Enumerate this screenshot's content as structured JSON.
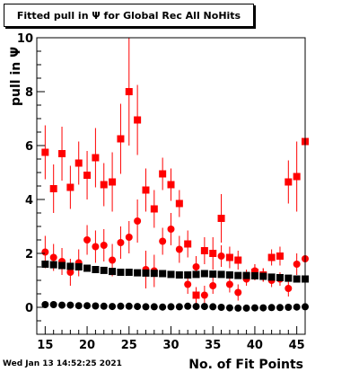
{
  "chart_data": {
    "type": "scatter",
    "title": "Fitted pull in  Ψ  for Global Rec All NoHits",
    "ylabel": "pull in  Ψ",
    "xlabel": "No. of Fit Points",
    "footer": "Wed Jan 13 14:52:25 2021",
    "xlim": [
      14,
      46
    ],
    "ylim": [
      -1,
      10
    ],
    "x_ticks": [
      "15",
      "20",
      "25",
      "30",
      "35",
      "40",
      "45"
    ],
    "y_ticks": [
      "0",
      "2",
      "4",
      "6",
      "8",
      "10"
    ],
    "colors": {
      "red": "#ff0000",
      "black": "#000000"
    },
    "series": [
      {
        "marker": "square",
        "color": "#ff0000",
        "points": [
          {
            "x": 15,
            "y": 5.75,
            "err": 1.0
          },
          {
            "x": 16,
            "y": 4.4,
            "err": 0.9
          },
          {
            "x": 17,
            "y": 5.7,
            "err": 1.0
          },
          {
            "x": 18,
            "y": 4.45,
            "err": 0.8
          },
          {
            "x": 19,
            "y": 5.35,
            "err": 0.8
          },
          {
            "x": 20,
            "y": 4.9,
            "err": 0.9
          },
          {
            "x": 21,
            "y": 5.55,
            "err": 1.1
          },
          {
            "x": 22,
            "y": 4.55,
            "err": 0.8
          },
          {
            "x": 23,
            "y": 4.65,
            "err": 1.1
          },
          {
            "x": 24,
            "y": 6.25,
            "err": 1.3
          },
          {
            "x": 25,
            "y": 8.0,
            "err": 2.0
          },
          {
            "x": 26,
            "y": 6.95,
            "err": 1.3
          },
          {
            "x": 27,
            "y": 4.35,
            "err": 0.8
          },
          {
            "x": 28,
            "y": 3.65,
            "err": 0.7
          },
          {
            "x": 29,
            "y": 4.95,
            "err": 0.6
          },
          {
            "x": 30,
            "y": 4.55,
            "err": 0.6
          },
          {
            "x": 31,
            "y": 3.85,
            "err": 0.5
          },
          {
            "x": 32,
            "y": 2.35,
            "err": 0.5
          },
          {
            "x": 33,
            "y": 0.45,
            "err": 0.3
          },
          {
            "x": 34,
            "y": 2.1,
            "err": 0.5
          },
          {
            "x": 35,
            "y": 2.0,
            "err": 0.6
          },
          {
            "x": 36,
            "y": 3.3,
            "err": 0.9
          },
          {
            "x": 37,
            "y": 1.85,
            "err": 0.4
          },
          {
            "x": 38,
            "y": 1.75,
            "err": 0.35
          },
          {
            "x": 39,
            "y": 1.15,
            "err": 0.25
          },
          {
            "x": 40,
            "y": 1.3,
            "err": 0.3
          },
          {
            "x": 41,
            "y": 1.2,
            "err": 0.25
          },
          {
            "x": 42,
            "y": 1.85,
            "err": 0.3
          },
          {
            "x": 43,
            "y": 1.9,
            "err": 0.35
          },
          {
            "x": 44,
            "y": 4.65,
            "err": 0.8
          },
          {
            "x": 45,
            "y": 4.85,
            "err": 1.3
          },
          {
            "x": 46,
            "y": 6.15,
            "err": 3.8
          }
        ]
      },
      {
        "marker": "circle",
        "color": "#ff0000",
        "points": [
          {
            "x": 15,
            "y": 2.05,
            "err": 0.6
          },
          {
            "x": 16,
            "y": 1.85,
            "err": 0.5
          },
          {
            "x": 17,
            "y": 1.7,
            "err": 0.5
          },
          {
            "x": 18,
            "y": 1.3,
            "err": 0.5
          },
          {
            "x": 19,
            "y": 1.65,
            "err": 0.5
          },
          {
            "x": 20,
            "y": 2.5,
            "err": 0.55
          },
          {
            "x": 21,
            "y": 2.25,
            "err": 0.6
          },
          {
            "x": 22,
            "y": 2.3,
            "err": 0.6
          },
          {
            "x": 23,
            "y": 1.75,
            "err": 0.6
          },
          {
            "x": 24,
            "y": 2.4,
            "err": 0.6
          },
          {
            "x": 25,
            "y": 2.6,
            "err": 0.6
          },
          {
            "x": 26,
            "y": 3.2,
            "err": 0.8
          },
          {
            "x": 27,
            "y": 1.4,
            "err": 0.7
          },
          {
            "x": 28,
            "y": 1.35,
            "err": 0.6
          },
          {
            "x": 29,
            "y": 2.45,
            "err": 0.5
          },
          {
            "x": 30,
            "y": 2.9,
            "err": 0.6
          },
          {
            "x": 31,
            "y": 2.15,
            "err": 0.5
          },
          {
            "x": 32,
            "y": 0.85,
            "err": 0.35
          },
          {
            "x": 33,
            "y": 1.5,
            "err": 0.4
          },
          {
            "x": 34,
            "y": 0.45,
            "err": 0.35
          },
          {
            "x": 35,
            "y": 0.8,
            "err": 0.3
          },
          {
            "x": 36,
            "y": 1.9,
            "err": 0.4
          },
          {
            "x": 37,
            "y": 0.85,
            "err": 0.3
          },
          {
            "x": 38,
            "y": 0.55,
            "err": 0.3
          },
          {
            "x": 39,
            "y": 1.05,
            "err": 0.25
          },
          {
            "x": 40,
            "y": 1.35,
            "err": 0.25
          },
          {
            "x": 41,
            "y": 1.2,
            "err": 0.25
          },
          {
            "x": 42,
            "y": 1.0,
            "err": 0.25
          },
          {
            "x": 43,
            "y": 1.05,
            "err": 0.25
          },
          {
            "x": 44,
            "y": 0.7,
            "err": 0.3
          },
          {
            "x": 45,
            "y": 1.6,
            "err": 0.4
          },
          {
            "x": 46,
            "y": 1.8,
            "err": 0.5
          }
        ]
      },
      {
        "marker": "square",
        "color": "#000000",
        "points": [
          {
            "x": 15,
            "y": 1.6
          },
          {
            "x": 16,
            "y": 1.58
          },
          {
            "x": 17,
            "y": 1.55
          },
          {
            "x": 18,
            "y": 1.52
          },
          {
            "x": 19,
            "y": 1.5
          },
          {
            "x": 20,
            "y": 1.45
          },
          {
            "x": 21,
            "y": 1.4
          },
          {
            "x": 22,
            "y": 1.37
          },
          {
            "x": 23,
            "y": 1.33
          },
          {
            "x": 24,
            "y": 1.3
          },
          {
            "x": 25,
            "y": 1.3
          },
          {
            "x": 26,
            "y": 1.28
          },
          {
            "x": 27,
            "y": 1.27
          },
          {
            "x": 28,
            "y": 1.26
          },
          {
            "x": 29,
            "y": 1.25
          },
          {
            "x": 30,
            "y": 1.22
          },
          {
            "x": 31,
            "y": 1.2
          },
          {
            "x": 32,
            "y": 1.2
          },
          {
            "x": 33,
            "y": 1.22
          },
          {
            "x": 34,
            "y": 1.25
          },
          {
            "x": 35,
            "y": 1.23
          },
          {
            "x": 36,
            "y": 1.22
          },
          {
            "x": 37,
            "y": 1.2
          },
          {
            "x": 38,
            "y": 1.18
          },
          {
            "x": 39,
            "y": 1.18
          },
          {
            "x": 40,
            "y": 1.17
          },
          {
            "x": 41,
            "y": 1.15
          },
          {
            "x": 42,
            "y": 1.12
          },
          {
            "x": 43,
            "y": 1.1
          },
          {
            "x": 44,
            "y": 1.08
          },
          {
            "x": 45,
            "y": 1.05
          },
          {
            "x": 46,
            "y": 1.05
          }
        ]
      },
      {
        "marker": "circle",
        "color": "#000000",
        "points": [
          {
            "x": 15,
            "y": 0.1
          },
          {
            "x": 16,
            "y": 0.1
          },
          {
            "x": 17,
            "y": 0.08
          },
          {
            "x": 18,
            "y": 0.08
          },
          {
            "x": 19,
            "y": 0.06
          },
          {
            "x": 20,
            "y": 0.06
          },
          {
            "x": 21,
            "y": 0.05
          },
          {
            "x": 22,
            "y": 0.04
          },
          {
            "x": 23,
            "y": 0.03
          },
          {
            "x": 24,
            "y": 0.04
          },
          {
            "x": 25,
            "y": 0.04
          },
          {
            "x": 26,
            "y": 0.03
          },
          {
            "x": 27,
            "y": 0.02
          },
          {
            "x": 28,
            "y": 0.02
          },
          {
            "x": 29,
            "y": 0.01
          },
          {
            "x": 30,
            "y": 0.02
          },
          {
            "x": 31,
            "y": 0.02
          },
          {
            "x": 32,
            "y": 0.04
          },
          {
            "x": 33,
            "y": 0.03
          },
          {
            "x": 34,
            "y": 0.03
          },
          {
            "x": 35,
            "y": 0.02
          },
          {
            "x": 36,
            "y": 0.0
          },
          {
            "x": 37,
            "y": -0.02
          },
          {
            "x": 38,
            "y": -0.03
          },
          {
            "x": 39,
            "y": -0.03
          },
          {
            "x": 40,
            "y": -0.02
          },
          {
            "x": 41,
            "y": -0.02
          },
          {
            "x": 42,
            "y": -0.01
          },
          {
            "x": 43,
            "y": -0.01
          },
          {
            "x": 44,
            "y": 0.0
          },
          {
            "x": 45,
            "y": 0.01
          },
          {
            "x": 46,
            "y": 0.02
          }
        ]
      }
    ]
  }
}
